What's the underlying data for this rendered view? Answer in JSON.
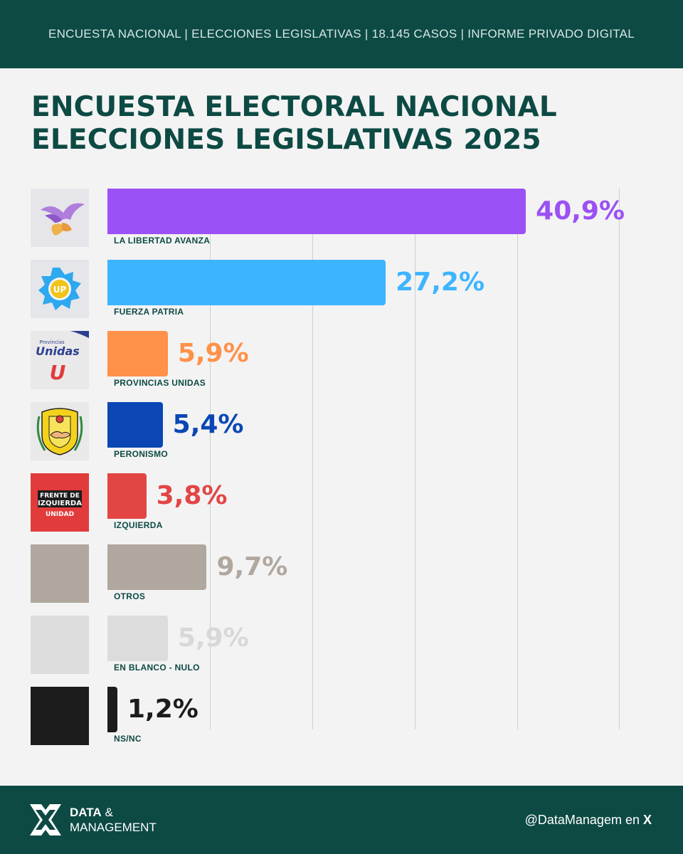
{
  "header": {
    "text": "ENCUESTA NACIONAL | ELECCIONES LEGISLATIVAS | 18.145 CASOS | INFORME PRIVADO DIGITAL"
  },
  "title": {
    "line1": "ENCUESTA ELECTORAL NACIONAL",
    "line2": "ELECCIONES LEGISLATIVAS 2025"
  },
  "logos": {
    "provincias_top": "Provincias",
    "provincias_main": "Unidas",
    "provincias_letter": "U",
    "up_text": "UP",
    "fit_line1": "FRENTE DE",
    "fit_line2": "IZQUIERDA",
    "fit_line3": "UNIDAD"
  },
  "chart_data": {
    "type": "bar",
    "orientation": "horizontal",
    "categories": [
      "LA LIBERTAD AVANZA",
      "FUERZA PATRIA",
      "PROVINCIAS UNIDAS",
      "PERONISMO",
      "IZQUIERDA",
      "OTROS",
      "EN BLANCO - NULO",
      "NS/NC"
    ],
    "values": [
      40.9,
      27.2,
      5.9,
      5.4,
      3.8,
      9.7,
      5.9,
      1.2
    ],
    "value_labels": [
      "40,9%",
      "27,2%",
      "5,9%",
      "5,4%",
      "3,8%",
      "9,7%",
      "5,9%",
      "1,2%"
    ],
    "colors": [
      "#9b51f5",
      "#3db4ff",
      "#ff9148",
      "#0a47b4",
      "#e34545",
      "#b0a79e",
      "#dcdcdc",
      "#1c1c1c"
    ],
    "value_colors": [
      "#9b51f5",
      "#3db4ff",
      "#ff9148",
      "#0a47b4",
      "#e34545",
      "#b0a79e",
      "#d8d8d8",
      "#1c1c1c"
    ],
    "xlim": [
      0,
      50
    ],
    "grid": true
  },
  "footer": {
    "brand_line1": "DATA",
    "brand_amp": "&",
    "brand_line2": "MANAGEMENT",
    "handle_text": "@DataManagem en",
    "handle_x": "X"
  },
  "colors": {
    "primary": "#0d4a44",
    "background": "#f3f3f3"
  }
}
